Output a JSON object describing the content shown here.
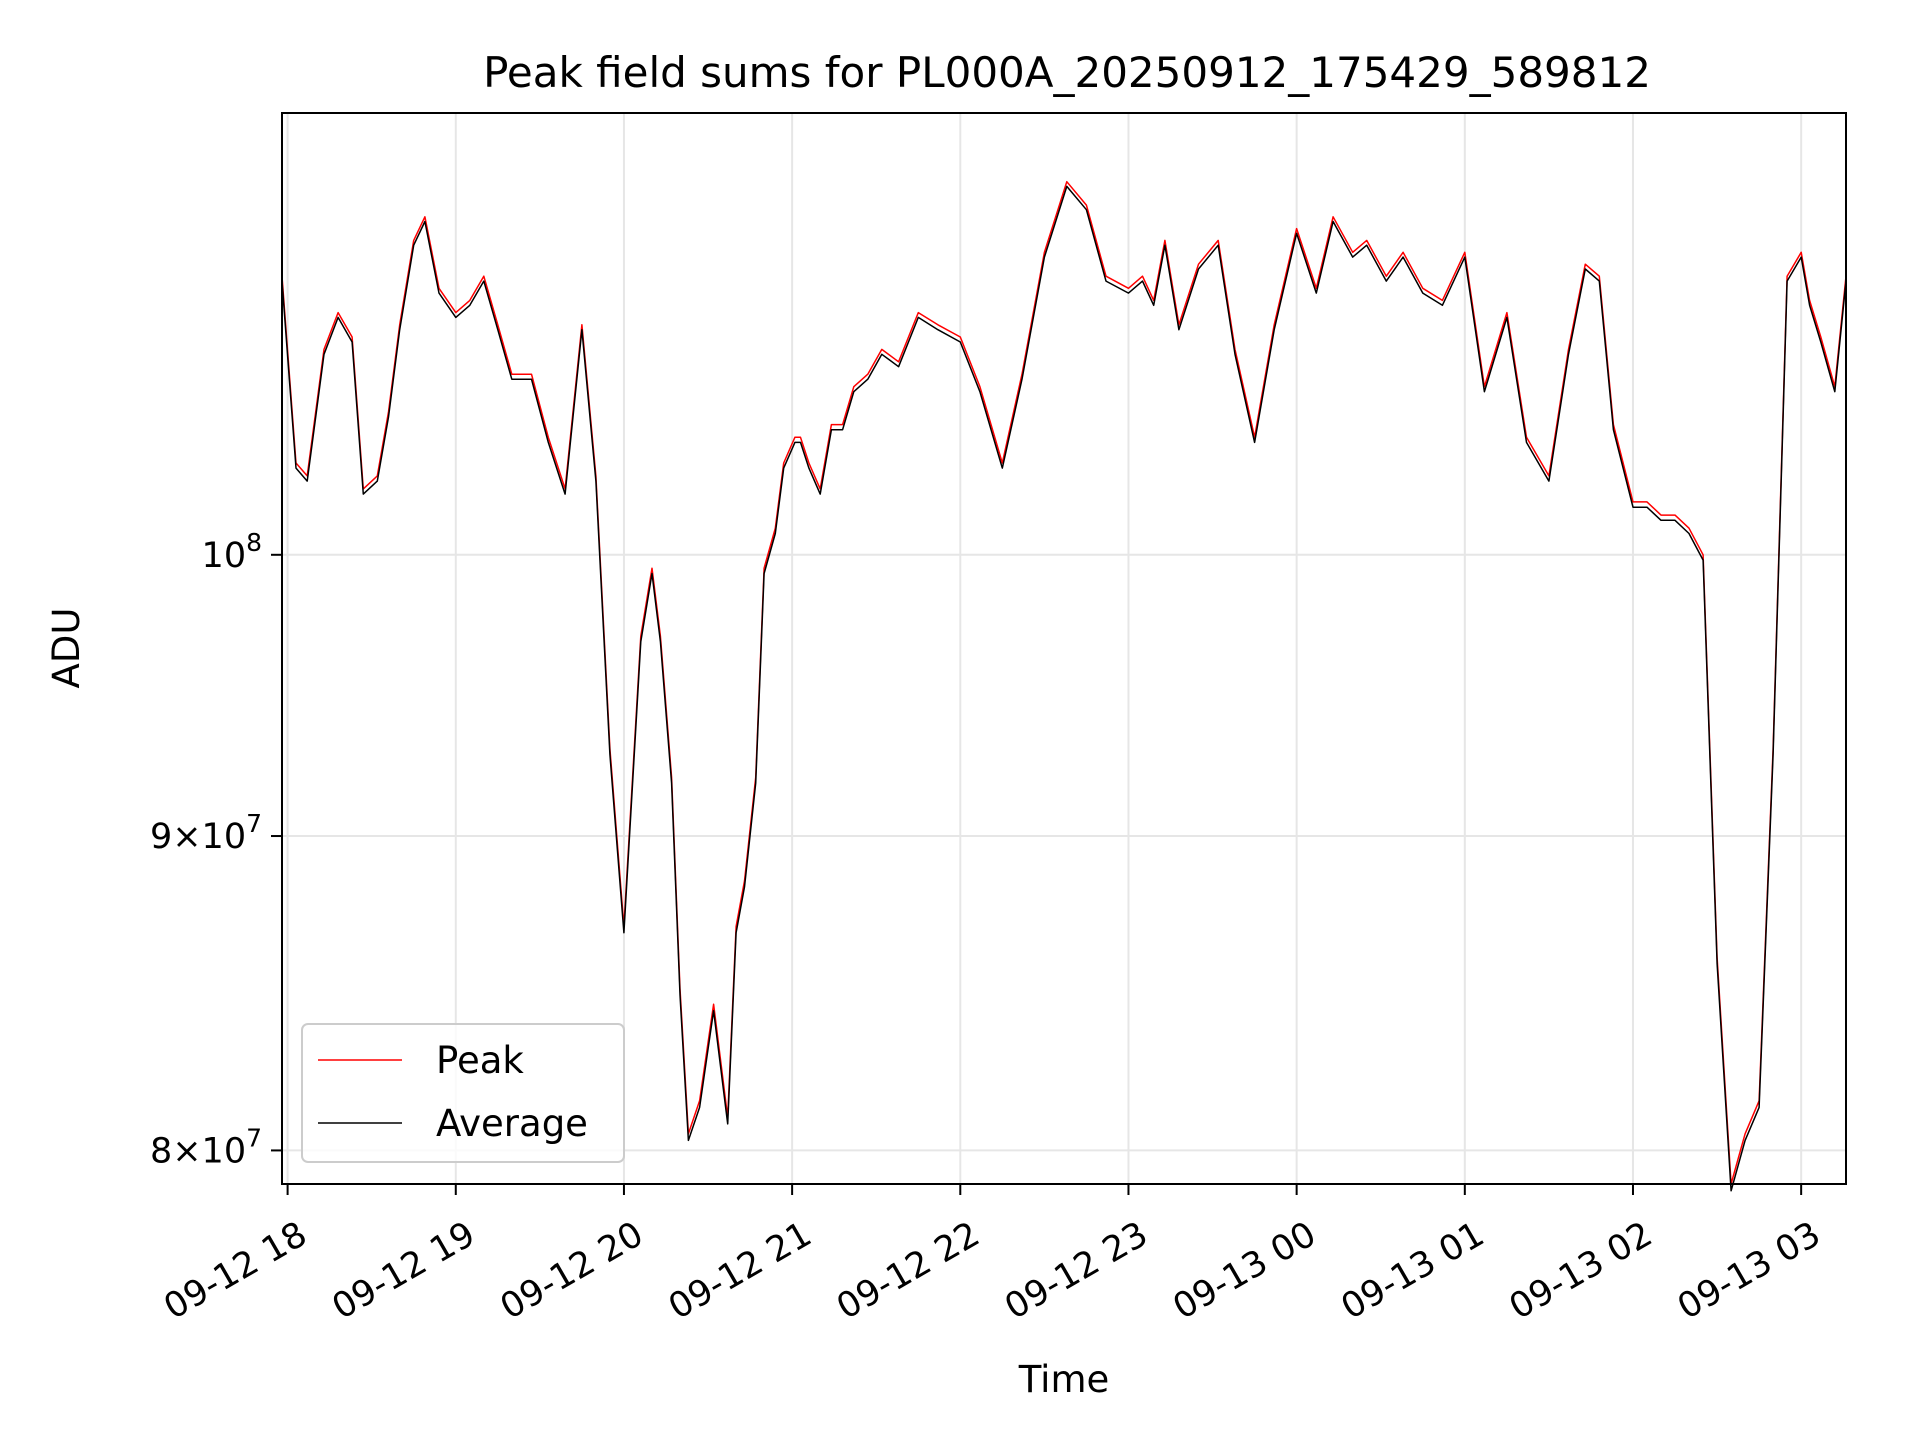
{
  "chart_data": {
    "type": "line",
    "title": "Peak field sums for PL000A_20250912_175429_589812",
    "xlabel": "Time",
    "ylabel": "ADU",
    "yscale": "log",
    "ylim": [
      79000000,
      118000000
    ],
    "xlim": [
      "2025-09-12 17:58",
      "2025-09-13 03:16"
    ],
    "grid": true,
    "legend": "lower-left",
    "x_ticks": [
      "09-12 18",
      "09-12 19",
      "09-12 20",
      "09-12 21",
      "09-12 22",
      "09-12 23",
      "09-13 00",
      "09-13 01",
      "09-13 02",
      "09-13 03"
    ],
    "y_ticks": [
      {
        "value": 80000000,
        "mantissa": "8",
        "base": "10",
        "exp": "7"
      },
      {
        "value": 90000000,
        "mantissa": "9",
        "base": "10",
        "exp": "7"
      },
      {
        "value": 100000000,
        "mantissa": "",
        "base": "10",
        "exp": "8"
      }
    ],
    "x": [
      "2025-09-12 17:58",
      "2025-09-12 18:03",
      "2025-09-12 18:07",
      "2025-09-12 18:13",
      "2025-09-12 18:18",
      "2025-09-12 18:23",
      "2025-09-12 18:27",
      "2025-09-12 18:32",
      "2025-09-12 18:36",
      "2025-09-12 18:40",
      "2025-09-12 18:45",
      "2025-09-12 18:49",
      "2025-09-12 18:54",
      "2025-09-12 19:00",
      "2025-09-12 19:05",
      "2025-09-12 19:10",
      "2025-09-12 19:15",
      "2025-09-12 19:20",
      "2025-09-12 19:27",
      "2025-09-12 19:33",
      "2025-09-12 19:39",
      "2025-09-12 19:45",
      "2025-09-12 19:50",
      "2025-09-12 19:55",
      "2025-09-12 20:00",
      "2025-09-12 20:06",
      "2025-09-12 20:10",
      "2025-09-12 20:13",
      "2025-09-12 20:17",
      "2025-09-12 20:20",
      "2025-09-12 20:23",
      "2025-09-12 20:27",
      "2025-09-12 20:32",
      "2025-09-12 20:37",
      "2025-09-12 20:40",
      "2025-09-12 20:43",
      "2025-09-12 20:47",
      "2025-09-12 20:50",
      "2025-09-12 20:54",
      "2025-09-12 20:57",
      "2025-09-12 21:01",
      "2025-09-12 21:03",
      "2025-09-12 21:06",
      "2025-09-12 21:10",
      "2025-09-12 21:14",
      "2025-09-12 21:18",
      "2025-09-12 21:22",
      "2025-09-12 21:27",
      "2025-09-12 21:32",
      "2025-09-12 21:38",
      "2025-09-12 21:45",
      "2025-09-12 21:52",
      "2025-09-12 22:00",
      "2025-09-12 22:07",
      "2025-09-12 22:15",
      "2025-09-12 22:22",
      "2025-09-12 22:30",
      "2025-09-12 22:38",
      "2025-09-12 22:45",
      "2025-09-12 22:52",
      "2025-09-12 23:00",
      "2025-09-12 23:05",
      "2025-09-12 23:09",
      "2025-09-12 23:13",
      "2025-09-12 23:18",
      "2025-09-12 23:25",
      "2025-09-12 23:32",
      "2025-09-12 23:38",
      "2025-09-12 23:45",
      "2025-09-12 23:52",
      "2025-09-13 00:00",
      "2025-09-13 00:07",
      "2025-09-13 00:13",
      "2025-09-13 00:20",
      "2025-09-13 00:25",
      "2025-09-13 00:32",
      "2025-09-13 00:38",
      "2025-09-13 00:45",
      "2025-09-13 00:52",
      "2025-09-13 01:00",
      "2025-09-13 01:07",
      "2025-09-13 01:15",
      "2025-09-13 01:22",
      "2025-09-13 01:30",
      "2025-09-13 01:37",
      "2025-09-13 01:43",
      "2025-09-13 01:48",
      "2025-09-13 01:53",
      "2025-09-13 02:00",
      "2025-09-13 02:05",
      "2025-09-13 02:10",
      "2025-09-13 02:15",
      "2025-09-13 02:20",
      "2025-09-13 02:25",
      "2025-09-13 02:30",
      "2025-09-13 02:35",
      "2025-09-13 02:40",
      "2025-09-13 02:45",
      "2025-09-13 02:50",
      "2025-09-13 02:55",
      "2025-09-13 03:00",
      "2025-09-13 03:03",
      "2025-09-13 03:07",
      "2025-09-13 03:12",
      "2025-09-13 03:16"
    ],
    "series": [
      {
        "name": "Peak",
        "color": "#ff0000",
        "values": [
          111000000,
          103500000,
          103000000,
          108000000,
          109500000,
          108500000,
          102500000,
          103000000,
          105500000,
          109000000,
          112500000,
          113500000,
          110500000,
          109500000,
          110000000,
          111000000,
          109000000,
          107000000,
          107000000,
          104500000,
          102500000,
          109000000,
          103000000,
          93000000,
          87000000,
          97000000,
          99500000,
          97000000,
          92000000,
          85000000,
          80500000,
          81500000,
          84500000,
          81000000,
          87000000,
          88500000,
          92000000,
          99500000,
          101000000,
          103500000,
          104500000,
          104500000,
          103500000,
          102500000,
          105000000,
          105000000,
          106500000,
          107000000,
          108000000,
          107500000,
          109500000,
          109000000,
          108500000,
          106500000,
          103500000,
          107000000,
          112000000,
          115000000,
          114000000,
          111000000,
          110500000,
          111000000,
          110000000,
          112500000,
          109000000,
          111500000,
          112500000,
          108000000,
          104500000,
          109000000,
          113000000,
          110500000,
          113500000,
          112000000,
          112500000,
          111000000,
          112000000,
          110500000,
          110000000,
          112000000,
          106500000,
          109500000,
          104500000,
          103000000,
          108000000,
          111500000,
          111000000,
          105000000,
          102000000,
          102000000,
          101500000,
          101500000,
          101000000,
          100000000,
          86000000,
          79000000,
          80500000,
          81500000,
          93000000,
          111000000,
          112000000,
          110000000,
          108500000,
          106500000,
          111000000
        ]
      },
      {
        "name": "Average",
        "color": "#000000",
        "values": [
          110800000,
          103300000,
          102800000,
          107800000,
          109300000,
          108300000,
          102300000,
          102800000,
          105300000,
          108800000,
          112300000,
          113300000,
          110300000,
          109300000,
          109800000,
          110800000,
          108800000,
          106800000,
          106800000,
          104300000,
          102300000,
          108800000,
          102800000,
          92800000,
          86800000,
          96800000,
          99300000,
          96800000,
          91800000,
          84800000,
          80300000,
          81300000,
          84300000,
          80800000,
          86800000,
          88300000,
          91800000,
          99300000,
          100800000,
          103300000,
          104300000,
          104300000,
          103300000,
          102300000,
          104800000,
          104800000,
          106300000,
          106800000,
          107800000,
          107300000,
          109300000,
          108800000,
          108300000,
          106300000,
          103300000,
          106800000,
          111800000,
          114800000,
          113800000,
          110800000,
          110300000,
          110800000,
          109800000,
          112300000,
          108800000,
          111300000,
          112300000,
          107800000,
          104300000,
          108800000,
          112800000,
          110300000,
          113300000,
          111800000,
          112300000,
          110800000,
          111800000,
          110300000,
          109800000,
          111800000,
          106300000,
          109300000,
          104300000,
          102800000,
          107800000,
          111300000,
          110800000,
          104800000,
          101800000,
          101800000,
          101300000,
          101300000,
          100800000,
          99800000,
          85800000,
          78800000,
          80300000,
          81300000,
          92800000,
          110800000,
          111800000,
          109800000,
          108300000,
          106300000,
          110800000
        ]
      }
    ]
  }
}
